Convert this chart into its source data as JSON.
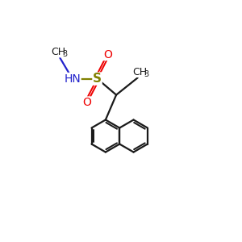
{
  "bg": "#ffffff",
  "bc": "#1a1a1a",
  "Sc": "#808000",
  "Nc": "#2222cc",
  "Oc": "#ee0000",
  "lw": 1.6,
  "r_hex": 0.68,
  "xlim": [
    0,
    10
  ],
  "ylim": [
    0,
    10
  ],
  "figsize": [
    3.0,
    3.0
  ],
  "dpi": 100
}
